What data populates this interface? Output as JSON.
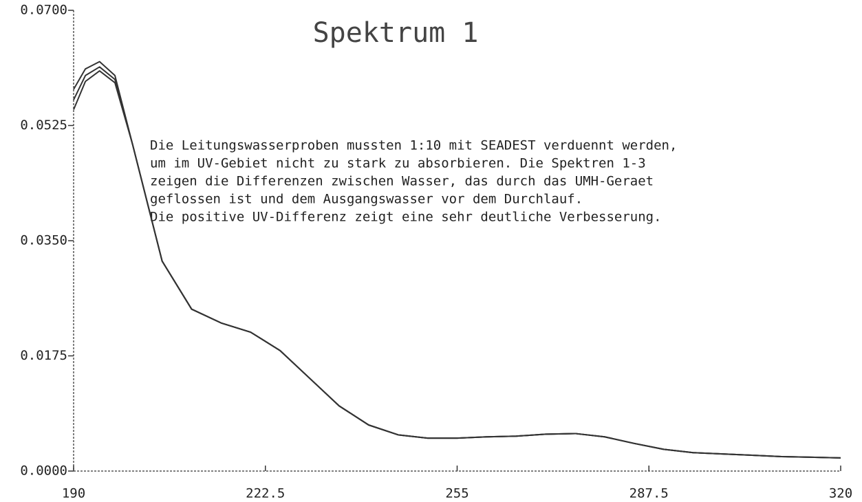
{
  "chart_data": {
    "type": "line",
    "title": "Spektrum 1",
    "annotation": [
      "Die Leitungswasserproben mussten 1:10 mit SEADEST verduennt werden,",
      "um im UV-Gebiet nicht zu stark zu absorbieren. Die Spektren 1-3",
      "zeigen die Differenzen zwischen Wasser, das durch das UMH-Geraet",
      "geflossen ist und dem Ausgangswasser vor dem Durchlauf.",
      "Die positive UV-Differenz zeigt eine sehr deutliche Verbesserung."
    ],
    "x": [
      190,
      192,
      194.4,
      197,
      200,
      205,
      210,
      215,
      220,
      225,
      230,
      235,
      240,
      245,
      250,
      255,
      260,
      265,
      270,
      275,
      280,
      285,
      290,
      295,
      300,
      305,
      310,
      315,
      320
    ],
    "series": [
      {
        "color": "#333333",
        "values": [
          0.058,
          0.0611,
          0.0622,
          0.0601,
          0.0496,
          0.0319,
          0.0246,
          0.0225,
          0.0211,
          0.0183,
          0.0141,
          0.0099,
          0.007,
          0.0055,
          0.005,
          0.005,
          0.0052,
          0.0053,
          0.0056,
          0.0057,
          0.0052,
          0.0042,
          0.0033,
          0.0028,
          0.0026,
          0.0024,
          0.0022,
          0.0021,
          0.002
        ]
      },
      {
        "color": "#333333",
        "values": [
          0.0564,
          0.0601,
          0.0614,
          0.0595,
          0.0496,
          0.0319,
          0.0246,
          0.0225,
          0.0211,
          0.0183,
          0.0141,
          0.0099,
          0.007,
          0.0055,
          0.005,
          0.005,
          0.0052,
          0.0053,
          0.0056,
          0.0057,
          0.0052,
          0.0042,
          0.0033,
          0.0028,
          0.0026,
          0.0024,
          0.0022,
          0.0021,
          0.002
        ]
      },
      {
        "color": "#333333",
        "values": [
          0.0549,
          0.0592,
          0.0608,
          0.059,
          0.0496,
          0.0319,
          0.0246,
          0.0225,
          0.0211,
          0.0183,
          0.0141,
          0.0099,
          0.007,
          0.0055,
          0.005,
          0.005,
          0.0052,
          0.0053,
          0.0056,
          0.0057,
          0.0052,
          0.0042,
          0.0033,
          0.0028,
          0.0026,
          0.0024,
          0.0022,
          0.0021,
          0.002
        ]
      }
    ],
    "xlim": [
      190,
      320
    ],
    "xticks": [
      190,
      222.5,
      255,
      287.5,
      320
    ],
    "ylim": [
      0,
      0.07
    ],
    "yticks": [
      {
        "value": 0,
        "label": "0.0000"
      },
      {
        "value": 0.0175,
        "label": "0.0175"
      },
      {
        "value": 0.035,
        "label": "0.0350"
      },
      {
        "value": 0.0525,
        "label": "0.0525"
      },
      {
        "value": 0.07,
        "label": "0.0700"
      }
    ],
    "grid": false
  }
}
